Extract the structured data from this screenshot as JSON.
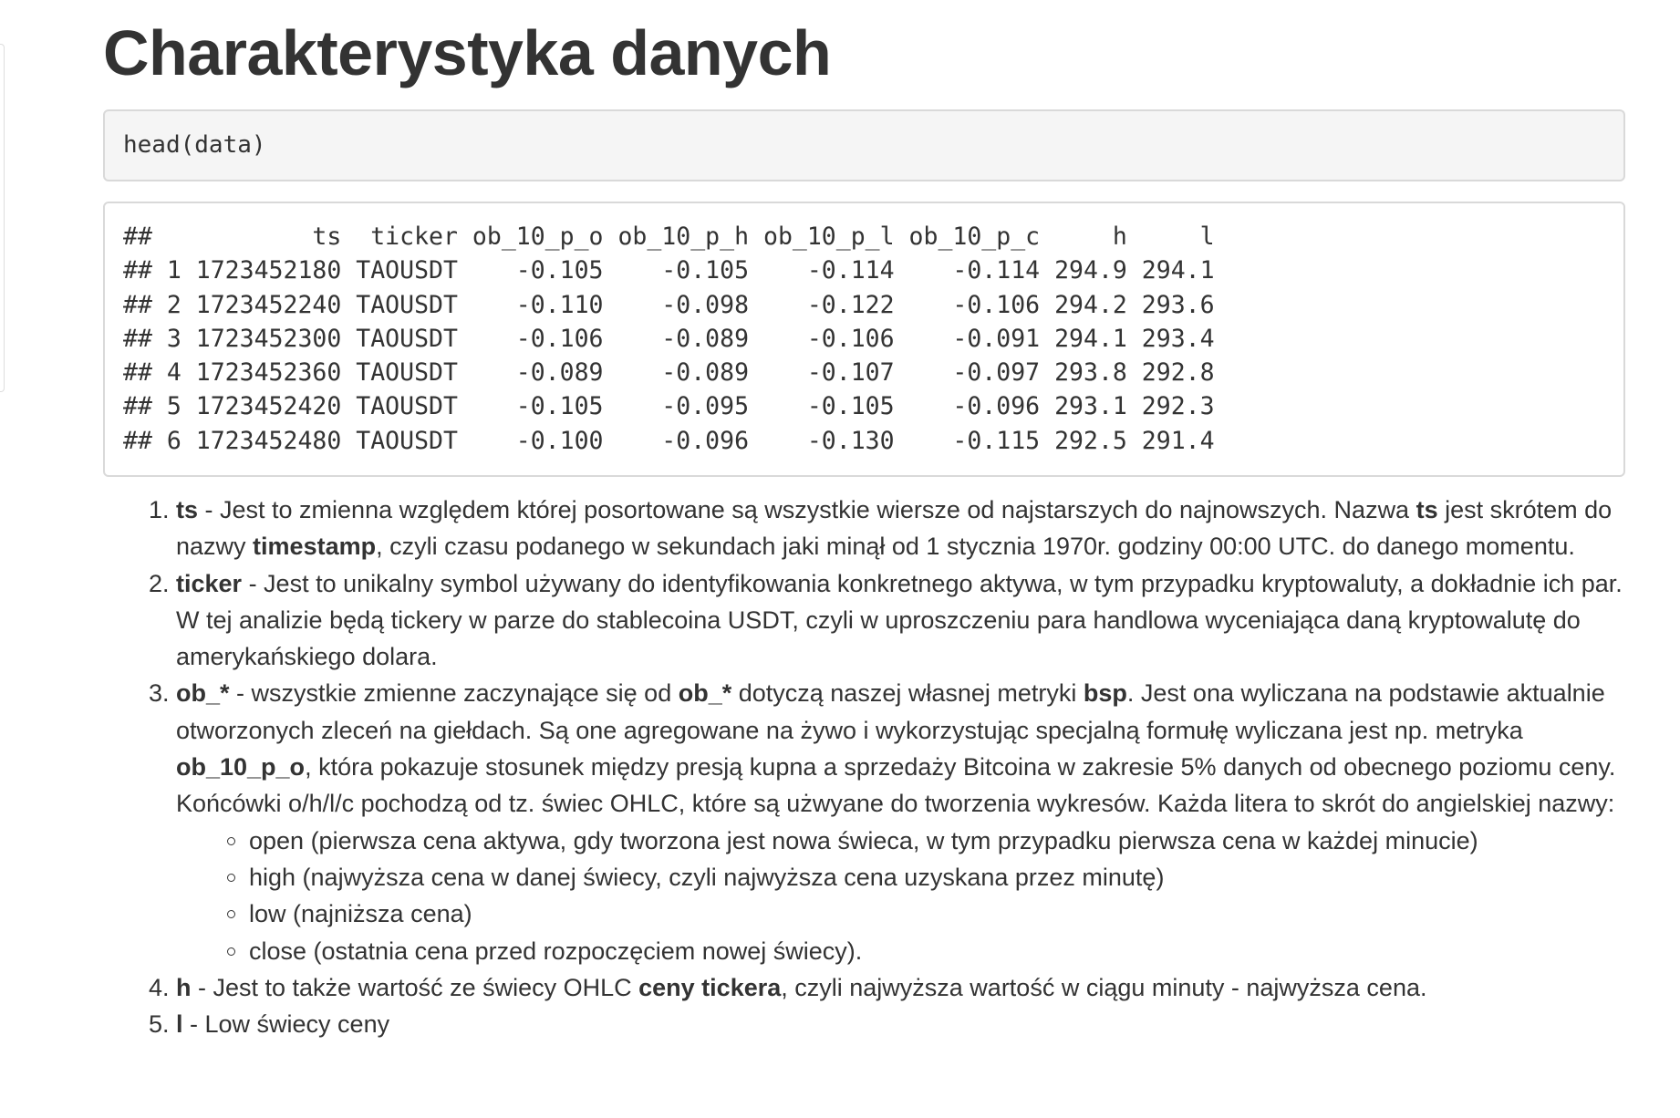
{
  "title": "Charakterystyka danych",
  "code": "head(data)",
  "output_lines": [
    "##           ts  ticker ob_10_p_o ob_10_p_h ob_10_p_l ob_10_p_c     h     l",
    "## 1 1723452180 TAOUSDT    -0.105    -0.105    -0.114    -0.114 294.9 294.1",
    "## 2 1723452240 TAOUSDT    -0.110    -0.098    -0.122    -0.106 294.2 293.6",
    "## 3 1723452300 TAOUSDT    -0.106    -0.089    -0.106    -0.091 294.1 293.4",
    "## 4 1723452360 TAOUSDT    -0.089    -0.089    -0.107    -0.097 293.8 292.8",
    "## 5 1723452420 TAOUSDT    -0.105    -0.095    -0.105    -0.096 293.1 292.3",
    "## 6 1723452480 TAOUSDT    -0.100    -0.096    -0.130    -0.115 292.5 291.4"
  ],
  "items": [
    {
      "term": "ts",
      "t1": " - Jest to zmienna względem której posortowane są wszystkie wiersze od najstarszych do najnowszych. Nazwa ",
      "b1": "ts",
      "t2": " jest skrótem do nazwy ",
      "b2": "timestamp",
      "t3": ", czyli czasu podanego w sekundach jaki minął od 1 stycznia 1970r. godziny 00:00 UTC. do danego momentu."
    },
    {
      "term": "ticker",
      "t1": " - Jest to unikalny symbol używany do identyfikowania konkretnego aktywa, w tym przypadku kryptowaluty, a dokładnie ich par. W tej analizie będą tickery w parze do stablecoina USDT, czyli w uproszczeniu para handlowa wyceniająca daną kryptowalutę do amerykańskiego dolara."
    },
    {
      "term": "ob_*",
      "t1": " - wszystkie zmienne zaczynające się od ",
      "b1": "ob_*",
      "t2": " dotyczą naszej własnej metryki ",
      "b2": "bsp",
      "t3": ". Jest ona wyliczana na podstawie aktualnie otworzonych zleceń na giełdach. Są one agregowane na żywo i wykorzystując specjalną formułę wyliczana jest np. metryka ",
      "b3": "ob_10_p_o",
      "t4": ", która pokazuje stosunek między presją kupna a sprzedaży Bitcoina w zakresie 5% danych od obecnego poziomu ceny. Końcówki o/h/l/c pochodzą od tz. świec OHLC, które są użwyane do tworzenia wykresów. Każda litera to skrót do angielskiej nazwy:",
      "sub": [
        "open (pierwsza cena aktywa, gdy tworzona jest nowa świeca, w tym przypadku pierwsza cena w każdej minucie)",
        "high (najwyższa cena w danej świecy, czyli najwyższa cena uzyskana przez minutę)",
        "low (najniższa cena)",
        "close (ostatnia cena przed rozpoczęciem nowej świecy)."
      ]
    },
    {
      "term": "h",
      "t1": " - Jest to także wartość ze świecy OHLC ",
      "b1": "ceny tickera",
      "t2": ", czyli najwyższa wartość w ciągu minuty - najwyższa cena."
    },
    {
      "term": "l",
      "t1": " - Low świecy ceny"
    }
  ]
}
